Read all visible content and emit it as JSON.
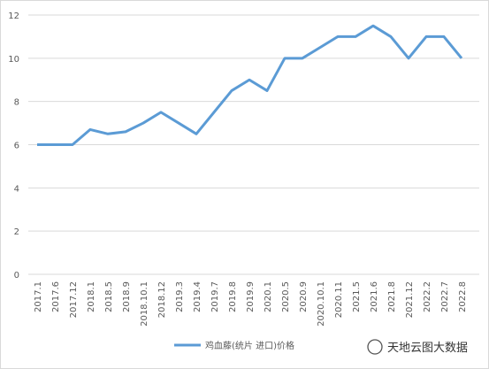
{
  "chart_data": {
    "type": "line",
    "categories": [
      "2017.1",
      "2017.6",
      "2017.12",
      "2018.1",
      "2018.5",
      "2018.9",
      "2018.10.1",
      "2018.12",
      "2019.3",
      "2019.4",
      "2019.7",
      "2019.8",
      "2019.9",
      "2020.1",
      "2020.5",
      "2020.9",
      "2020.10.1",
      "2020.11",
      "2021.5",
      "2021.6",
      "2021.8",
      "2021.12",
      "2022.2",
      "2022.7",
      "2022.8"
    ],
    "series": [
      {
        "name": "鸡血藤(统片 进口)价格",
        "color": "#5b9bd5",
        "values": [
          6,
          6,
          6,
          6.7,
          6.5,
          6.6,
          7,
          7.5,
          7,
          6.5,
          7.5,
          8.5,
          9,
          8.5,
          10,
          10,
          10.5,
          11,
          11,
          11.5,
          11,
          10,
          11,
          11,
          10
        ]
      }
    ],
    "ylim": [
      0,
      12
    ],
    "yticks": [
      0,
      2,
      4,
      6,
      8,
      10,
      12
    ],
    "grid": true,
    "legend": "bottom",
    "annotation": "天地云图大数据"
  }
}
